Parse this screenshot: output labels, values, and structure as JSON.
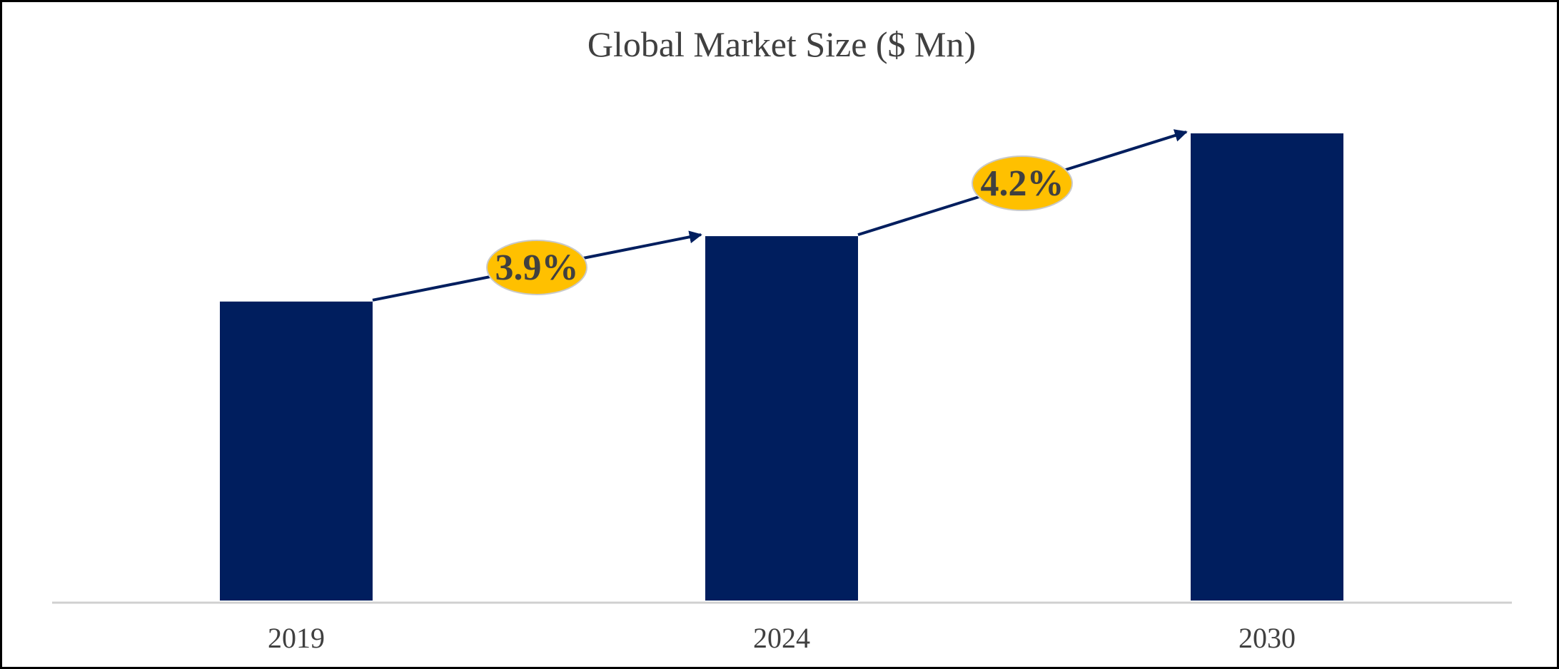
{
  "chart_data": {
    "type": "bar",
    "title": "Global Market Size ($ Mn)",
    "categories": [
      "2019",
      "2024",
      "2030"
    ],
    "values": [
      64,
      78,
      100
    ],
    "ylim": [
      0,
      100
    ],
    "xlabel": "",
    "ylabel": "",
    "grid": false,
    "bar_color": "#001e5e",
    "annotations": [
      {
        "label": "3.9%",
        "from": "2019",
        "to": "2024"
      },
      {
        "label": "4.2%",
        "from": "2024",
        "to": "2030"
      }
    ],
    "annotation_color": "#ffc000",
    "arrow_color": "#001e5e"
  }
}
